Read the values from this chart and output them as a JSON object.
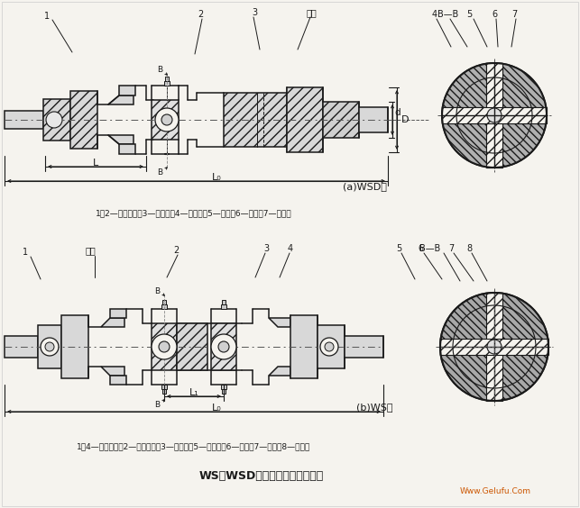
{
  "title": "WS、WSD型十字轴式万向联轴器",
  "bg_color": "#f5f3ee",
  "line_color": "#1a1a1a",
  "top_label_a": "(a)WSD型",
  "bot_label_b": "(b)WS型",
  "top_caption": "1、2—半联轴器；3—圆锥销；4—十字轴；5—销钉；6—套筒；7—圆柱销",
  "bot_caption": "1、4—半联轴器；2—叉形接头；3—圆锥销；5—十字轴；6—销钉；7—套筒；8—圆柱销",
  "watermark": "Www.Gelufu.Com"
}
